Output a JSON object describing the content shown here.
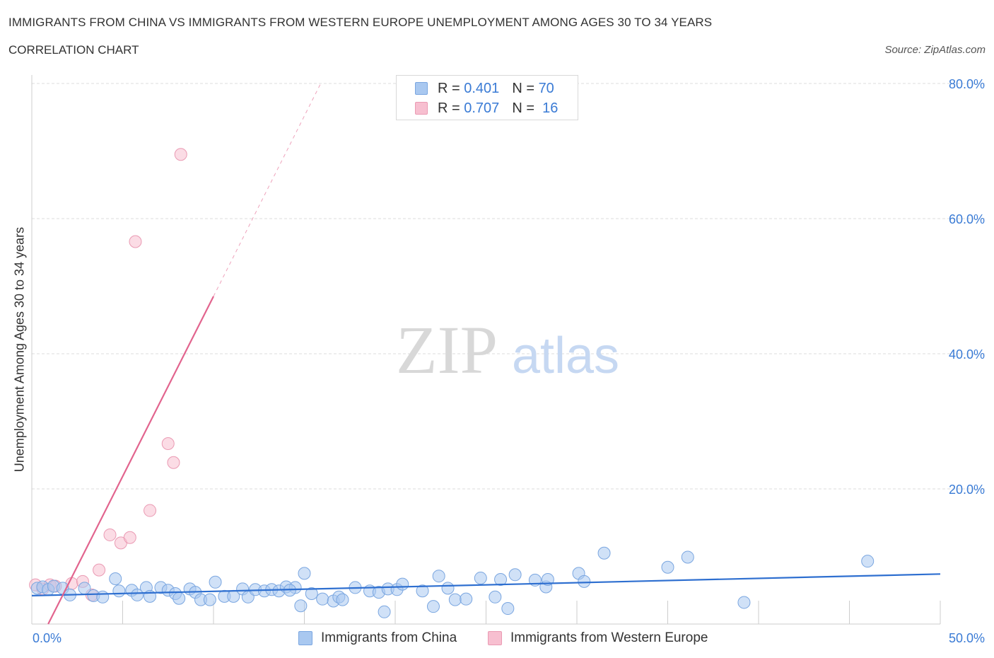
{
  "header": {
    "title": "IMMIGRANTS FROM CHINA VS IMMIGRANTS FROM WESTERN EUROPE UNEMPLOYMENT AMONG AGES 30 TO 34 YEARS",
    "subtitle": "CORRELATION CHART",
    "source": "Source: ZipAtlas.com"
  },
  "watermark": {
    "zip": "ZIP",
    "atlas": "atlas"
  },
  "legend": {
    "china": {
      "r_label": "R =",
      "r_value": "0.401",
      "n_label": "N =",
      "n_value": "70"
    },
    "we": {
      "r_label": "R =",
      "r_value": "0.707",
      "n_label": "N =",
      "n_value": "16"
    }
  },
  "colors": {
    "china_fill": "#a9c8f0",
    "china_stroke": "#7aa6e0",
    "china_line": "#2e6fd0",
    "we_fill": "#f7bfd0",
    "we_stroke": "#ea9ab3",
    "we_line": "#e2648e",
    "accent_text": "#3a7bd5",
    "grid": "#dddddd"
  },
  "chart_data": {
    "type": "scatter",
    "title": "IMMIGRANTS FROM CHINA VS IMMIGRANTS FROM WESTERN EUROPE UNEMPLOYMENT AMONG AGES 30 TO 34 YEARS",
    "subtitle": "CORRELATION CHART",
    "xlabel": "",
    "ylabel": "Unemployment Among Ages 30 to 34 years",
    "xlim": [
      0,
      50
    ],
    "ylim": [
      0,
      80
    ],
    "x_tick_labels": [
      "0.0%",
      "50.0%"
    ],
    "y_ticks": [
      20,
      40,
      60,
      80
    ],
    "y_tick_labels": [
      "20.0%",
      "40.0%",
      "60.0%",
      "80.0%"
    ],
    "grid": true,
    "series": [
      {
        "name": "Immigrants from China",
        "r": 0.401,
        "n": 70,
        "trend": {
          "x0": 0,
          "y0": 4.2,
          "x1": 50,
          "y1": 7.4
        },
        "points": [
          [
            0.3,
            5.3
          ],
          [
            0.6,
            5.5
          ],
          [
            0.9,
            5.1
          ],
          [
            1.2,
            5.6
          ],
          [
            1.7,
            5.3
          ],
          [
            2.1,
            4.3
          ],
          [
            2.9,
            5.3
          ],
          [
            3.4,
            4.2
          ],
          [
            3.9,
            4.0
          ],
          [
            4.6,
            6.7
          ],
          [
            4.8,
            4.9
          ],
          [
            5.5,
            5.0
          ],
          [
            5.8,
            4.3
          ],
          [
            6.3,
            5.4
          ],
          [
            6.5,
            4.1
          ],
          [
            7.1,
            5.4
          ],
          [
            7.5,
            5.0
          ],
          [
            7.9,
            4.5
          ],
          [
            8.1,
            3.8
          ],
          [
            8.7,
            5.2
          ],
          [
            9.0,
            4.7
          ],
          [
            9.3,
            3.6
          ],
          [
            9.8,
            3.6
          ],
          [
            10.1,
            6.2
          ],
          [
            10.6,
            4.1
          ],
          [
            11.1,
            4.1
          ],
          [
            11.6,
            5.2
          ],
          [
            11.9,
            4.0
          ],
          [
            12.3,
            5.1
          ],
          [
            12.8,
            4.9
          ],
          [
            13.2,
            5.1
          ],
          [
            13.6,
            4.9
          ],
          [
            14.0,
            5.5
          ],
          [
            14.5,
            5.4
          ],
          [
            14.2,
            5.0
          ],
          [
            15.0,
            7.5
          ],
          [
            15.4,
            4.5
          ],
          [
            14.8,
            2.7
          ],
          [
            16.0,
            3.7
          ],
          [
            16.6,
            3.4
          ],
          [
            16.9,
            4.0
          ],
          [
            17.1,
            3.6
          ],
          [
            17.8,
            5.4
          ],
          [
            18.6,
            4.9
          ],
          [
            19.1,
            4.7
          ],
          [
            19.4,
            1.8
          ],
          [
            19.6,
            5.2
          ],
          [
            20.1,
            5.1
          ],
          [
            20.4,
            5.9
          ],
          [
            21.5,
            4.9
          ],
          [
            22.1,
            2.6
          ],
          [
            22.4,
            7.1
          ],
          [
            22.9,
            5.3
          ],
          [
            23.3,
            3.6
          ],
          [
            23.9,
            3.7
          ],
          [
            24.7,
            6.8
          ],
          [
            25.5,
            4.0
          ],
          [
            25.8,
            6.6
          ],
          [
            26.2,
            2.3
          ],
          [
            26.6,
            7.3
          ],
          [
            27.7,
            6.5
          ],
          [
            28.3,
            5.5
          ],
          [
            28.4,
            6.6
          ],
          [
            30.1,
            7.5
          ],
          [
            30.4,
            6.3
          ],
          [
            31.5,
            10.5
          ],
          [
            35.0,
            8.4
          ],
          [
            36.1,
            9.9
          ],
          [
            39.2,
            3.2
          ],
          [
            46.0,
            9.3
          ]
        ]
      },
      {
        "name": "Immigrants from Western Europe",
        "r": 0.707,
        "n": 16,
        "trend": {
          "x0": 0.9,
          "y0": 0,
          "x1": 10.0,
          "y1": 48.5
        },
        "trend_dashed": {
          "x0": 10.0,
          "y0": 48.5,
          "x1": 15.9,
          "y1": 80
        },
        "points": [
          [
            0.2,
            5.8
          ],
          [
            0.6,
            5.2
          ],
          [
            1.0,
            5.8
          ],
          [
            1.3,
            5.6
          ],
          [
            2.2,
            6.0
          ],
          [
            2.8,
            6.3
          ],
          [
            3.3,
            4.3
          ],
          [
            3.7,
            8.0
          ],
          [
            4.3,
            13.2
          ],
          [
            4.9,
            12.0
          ],
          [
            5.4,
            12.8
          ],
          [
            5.7,
            56.6
          ],
          [
            6.5,
            16.8
          ],
          [
            7.5,
            26.7
          ],
          [
            7.8,
            23.9
          ],
          [
            8.2,
            69.5
          ]
        ]
      }
    ]
  },
  "bottom_legend": {
    "china_label": "Immigrants from China",
    "we_label": "Immigrants from Western Europe"
  }
}
